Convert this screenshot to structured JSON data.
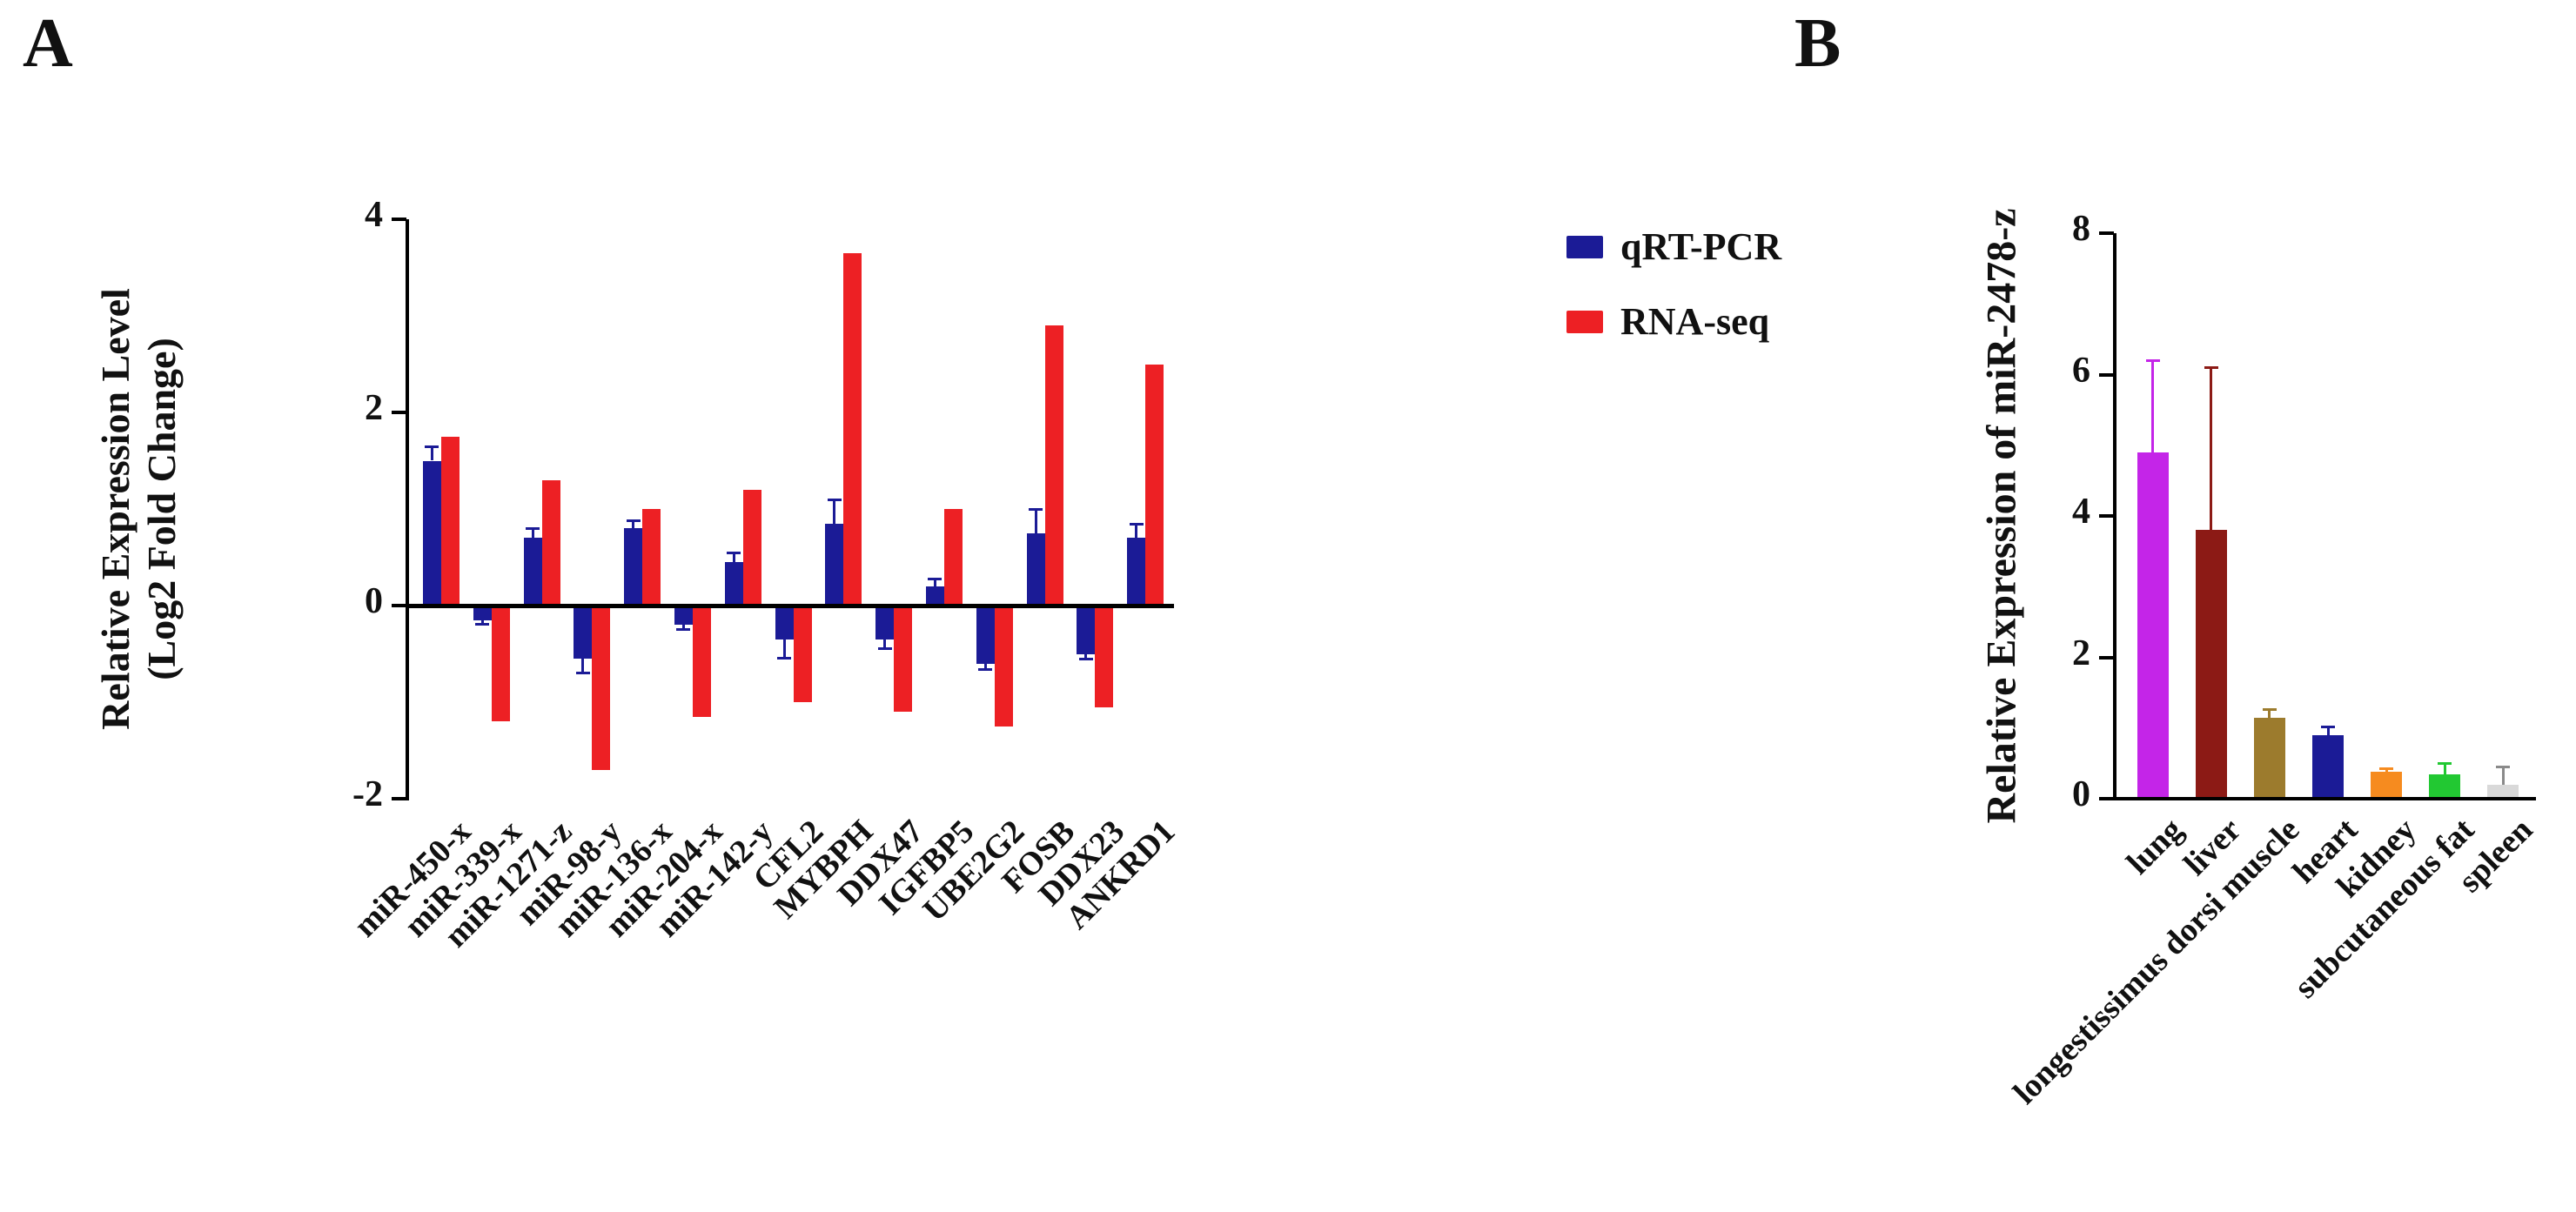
{
  "page": {
    "background": "#ffffff"
  },
  "panels": {
    "a": {
      "label": "A",
      "legend": [
        {
          "label": "qRT-PCR",
          "color": "#1b1b96"
        },
        {
          "label": "RNA-seq",
          "color": "#ed2024"
        }
      ]
    },
    "b": {
      "label": "B"
    }
  },
  "chart_data": [
    {
      "id": "panel-a",
      "type": "bar",
      "title": "",
      "ylabel_line1": "Relative Expression Level",
      "ylabel_line2": "(Log2 Fold Change)",
      "ylim": [
        -2,
        4
      ],
      "yticks": [
        4,
        2,
        0,
        -2
      ],
      "grid": false,
      "legend_position": "right",
      "categories": [
        "miR-450-x",
        "miR-339-x",
        "miR-1271-z",
        "miR-98-y",
        "miR-136-x",
        "miR-204-x",
        "miR-142-y",
        "CFL2",
        "MYBPH",
        "DDX47",
        "IGFBP5",
        "UBE2G2",
        "FOSB",
        "DDX23",
        "ANKRD1"
      ],
      "series": [
        {
          "name": "qRT-PCR",
          "color": "#1b1b96",
          "values": [
            1.5,
            -0.15,
            0.7,
            -0.55,
            0.8,
            -0.2,
            0.45,
            -0.35,
            0.85,
            -0.35,
            0.2,
            -0.6,
            0.75,
            -0.5,
            0.7
          ],
          "errors": [
            0.15,
            0.05,
            0.1,
            0.15,
            0.08,
            0.05,
            0.1,
            0.2,
            0.25,
            0.1,
            0.08,
            0.07,
            0.25,
            0.06,
            0.15
          ]
        },
        {
          "name": "RNA-seq",
          "color": "#ed2024",
          "values": [
            1.75,
            -1.2,
            1.3,
            -1.7,
            1.0,
            -1.15,
            1.2,
            -1.0,
            3.65,
            -1.1,
            1.0,
            -1.25,
            2.9,
            -1.05,
            2.5
          ],
          "errors": [
            0,
            0,
            0,
            0,
            0,
            0,
            0,
            0,
            0,
            0,
            0,
            0,
            0,
            0,
            0
          ]
        }
      ]
    },
    {
      "id": "panel-b",
      "type": "bar",
      "title": "",
      "ylabel": "Relative Expression of miR-2478-z",
      "ylim": [
        0,
        8
      ],
      "yticks": [
        0,
        2,
        4,
        6,
        8
      ],
      "grid": false,
      "categories": [
        "lung",
        "liver",
        "longestissimus dorsi muscle",
        "heart",
        "kidney",
        "subcutaneous fat",
        "spleen"
      ],
      "values": [
        4.9,
        3.8,
        1.15,
        0.9,
        0.38,
        0.35,
        0.2
      ],
      "errors": [
        1.3,
        2.3,
        0.12,
        0.12,
        0.05,
        0.15,
        0.25
      ],
      "colors": [
        "#c425e8",
        "#8c1a15",
        "#9c7b2d",
        "#1b1b96",
        "#f68b1f",
        "#22c832",
        "#d9d9d9"
      ],
      "error_colors": [
        "#c425e8",
        "#8c1a15",
        "#9c7b2d",
        "#1b1b96",
        "#f68b1f",
        "#22c832",
        "#8a8a8a"
      ]
    }
  ]
}
